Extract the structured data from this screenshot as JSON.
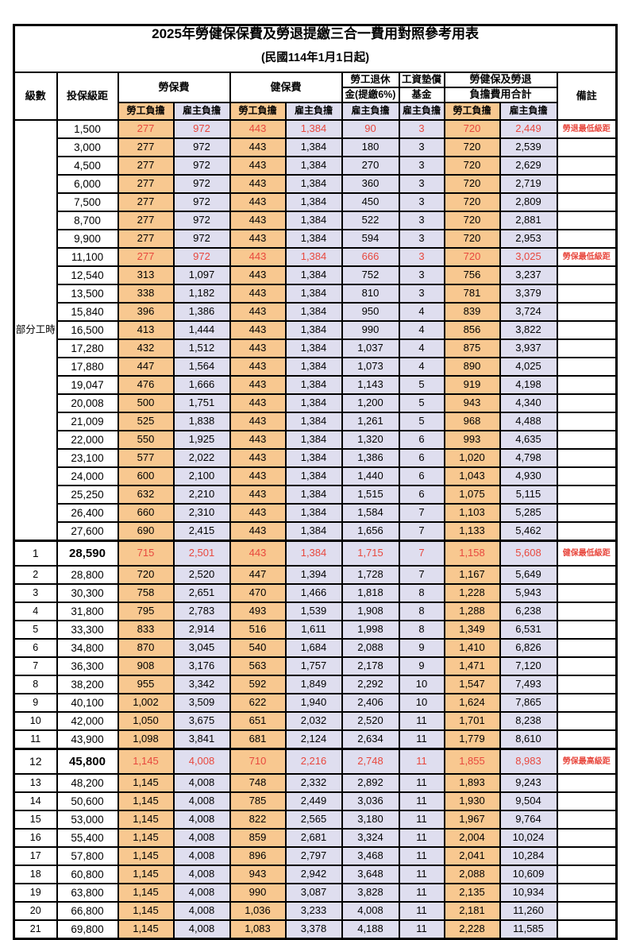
{
  "title": "2025年勞健保保費及勞退提繳三合一費用對照參考用表",
  "subtitle": "(民國114年1月1日起)",
  "colors": {
    "worker_bg": "#F8C890",
    "employer_bg": "#DFDEEF",
    "highlight_red": "#E8483E",
    "grid": "#000000"
  },
  "header": {
    "level": "級數",
    "salary": "投保級距",
    "labor_ins": "勞保費",
    "health_ins": "健保費",
    "pension_l1": "勞工退休",
    "pension_l2": "金(提繳6%)",
    "wage_fund_l1": "工資墊償",
    "wage_fund_l2": "基金",
    "total_l1": "勞健保及勞退",
    "total_l2": "負擔費用合計",
    "remark": "備註",
    "worker": "勞工負擔",
    "employer": "雇主負擔"
  },
  "part_time": {
    "label": "部分工時",
    "rowspan": 23
  },
  "red_rows": [
    0,
    7,
    23,
    34
  ],
  "emph_rows": [
    23,
    34
  ],
  "rows": [
    [
      "",
      "1,500",
      "277",
      "972",
      "443",
      "1,384",
      "90",
      "3",
      "720",
      "2,449",
      "勞退最低級距"
    ],
    [
      "",
      "3,000",
      "277",
      "972",
      "443",
      "1,384",
      "180",
      "3",
      "720",
      "2,539",
      ""
    ],
    [
      "",
      "4,500",
      "277",
      "972",
      "443",
      "1,384",
      "270",
      "3",
      "720",
      "2,629",
      ""
    ],
    [
      "",
      "6,000",
      "277",
      "972",
      "443",
      "1,384",
      "360",
      "3",
      "720",
      "2,719",
      ""
    ],
    [
      "",
      "7,500",
      "277",
      "972",
      "443",
      "1,384",
      "450",
      "3",
      "720",
      "2,809",
      ""
    ],
    [
      "",
      "8,700",
      "277",
      "972",
      "443",
      "1,384",
      "522",
      "3",
      "720",
      "2,881",
      ""
    ],
    [
      "",
      "9,900",
      "277",
      "972",
      "443",
      "1,384",
      "594",
      "3",
      "720",
      "2,953",
      ""
    ],
    [
      "",
      "11,100",
      "277",
      "972",
      "443",
      "1,384",
      "666",
      "3",
      "720",
      "3,025",
      "勞保最低級距"
    ],
    [
      "",
      "12,540",
      "313",
      "1,097",
      "443",
      "1,384",
      "752",
      "3",
      "756",
      "3,237",
      ""
    ],
    [
      "",
      "13,500",
      "338",
      "1,182",
      "443",
      "1,384",
      "810",
      "3",
      "781",
      "3,379",
      ""
    ],
    [
      "",
      "15,840",
      "396",
      "1,386",
      "443",
      "1,384",
      "950",
      "4",
      "839",
      "3,724",
      ""
    ],
    [
      "",
      "16,500",
      "413",
      "1,444",
      "443",
      "1,384",
      "990",
      "4",
      "856",
      "3,822",
      ""
    ],
    [
      "",
      "17,280",
      "432",
      "1,512",
      "443",
      "1,384",
      "1,037",
      "4",
      "875",
      "3,937",
      ""
    ],
    [
      "",
      "17,880",
      "447",
      "1,564",
      "443",
      "1,384",
      "1,073",
      "4",
      "890",
      "4,025",
      ""
    ],
    [
      "",
      "19,047",
      "476",
      "1,666",
      "443",
      "1,384",
      "1,143",
      "5",
      "919",
      "4,198",
      ""
    ],
    [
      "",
      "20,008",
      "500",
      "1,751",
      "443",
      "1,384",
      "1,200",
      "5",
      "943",
      "4,340",
      ""
    ],
    [
      "",
      "21,009",
      "525",
      "1,838",
      "443",
      "1,384",
      "1,261",
      "5",
      "968",
      "4,488",
      ""
    ],
    [
      "",
      "22,000",
      "550",
      "1,925",
      "443",
      "1,384",
      "1,320",
      "6",
      "993",
      "4,635",
      ""
    ],
    [
      "",
      "23,100",
      "577",
      "2,022",
      "443",
      "1,384",
      "1,386",
      "6",
      "1,020",
      "4,798",
      ""
    ],
    [
      "",
      "24,000",
      "600",
      "2,100",
      "443",
      "1,384",
      "1,440",
      "6",
      "1,043",
      "4,930",
      ""
    ],
    [
      "",
      "25,250",
      "632",
      "2,210",
      "443",
      "1,384",
      "1,515",
      "6",
      "1,075",
      "5,115",
      ""
    ],
    [
      "",
      "26,400",
      "660",
      "2,310",
      "443",
      "1,384",
      "1,584",
      "7",
      "1,103",
      "5,285",
      ""
    ],
    [
      "",
      "27,600",
      "690",
      "2,415",
      "443",
      "1,384",
      "1,656",
      "7",
      "1,133",
      "5,462",
      ""
    ],
    [
      "1",
      "28,590",
      "715",
      "2,501",
      "443",
      "1,384",
      "1,715",
      "7",
      "1,158",
      "5,608",
      "健保最低級距"
    ],
    [
      "2",
      "28,800",
      "720",
      "2,520",
      "447",
      "1,394",
      "1,728",
      "7",
      "1,167",
      "5,649",
      ""
    ],
    [
      "3",
      "30,300",
      "758",
      "2,651",
      "470",
      "1,466",
      "1,818",
      "8",
      "1,228",
      "5,943",
      ""
    ],
    [
      "4",
      "31,800",
      "795",
      "2,783",
      "493",
      "1,539",
      "1,908",
      "8",
      "1,288",
      "6,238",
      ""
    ],
    [
      "5",
      "33,300",
      "833",
      "2,914",
      "516",
      "1,611",
      "1,998",
      "8",
      "1,349",
      "6,531",
      ""
    ],
    [
      "6",
      "34,800",
      "870",
      "3,045",
      "540",
      "1,684",
      "2,088",
      "9",
      "1,410",
      "6,826",
      ""
    ],
    [
      "7",
      "36,300",
      "908",
      "3,176",
      "563",
      "1,757",
      "2,178",
      "9",
      "1,471",
      "7,120",
      ""
    ],
    [
      "8",
      "38,200",
      "955",
      "3,342",
      "592",
      "1,849",
      "2,292",
      "10",
      "1,547",
      "7,493",
      ""
    ],
    [
      "9",
      "40,100",
      "1,002",
      "3,509",
      "622",
      "1,940",
      "2,406",
      "10",
      "1,624",
      "7,865",
      ""
    ],
    [
      "10",
      "42,000",
      "1,050",
      "3,675",
      "651",
      "2,032",
      "2,520",
      "11",
      "1,701",
      "8,238",
      ""
    ],
    [
      "11",
      "43,900",
      "1,098",
      "3,841",
      "681",
      "2,124",
      "2,634",
      "11",
      "1,779",
      "8,610",
      ""
    ],
    [
      "12",
      "45,800",
      "1,145",
      "4,008",
      "710",
      "2,216",
      "2,748",
      "11",
      "1,855",
      "8,983",
      "勞保最高級距"
    ],
    [
      "13",
      "48,200",
      "1,145",
      "4,008",
      "748",
      "2,332",
      "2,892",
      "11",
      "1,893",
      "9,243",
      ""
    ],
    [
      "14",
      "50,600",
      "1,145",
      "4,008",
      "785",
      "2,449",
      "3,036",
      "11",
      "1,930",
      "9,504",
      ""
    ],
    [
      "15",
      "53,000",
      "1,145",
      "4,008",
      "822",
      "2,565",
      "3,180",
      "11",
      "1,967",
      "9,764",
      ""
    ],
    [
      "16",
      "55,400",
      "1,145",
      "4,008",
      "859",
      "2,681",
      "3,324",
      "11",
      "2,004",
      "10,024",
      ""
    ],
    [
      "17",
      "57,800",
      "1,145",
      "4,008",
      "896",
      "2,797",
      "3,468",
      "11",
      "2,041",
      "10,284",
      ""
    ],
    [
      "18",
      "60,800",
      "1,145",
      "4,008",
      "943",
      "2,942",
      "3,648",
      "11",
      "2,088",
      "10,609",
      ""
    ],
    [
      "19",
      "63,800",
      "1,145",
      "4,008",
      "990",
      "3,087",
      "3,828",
      "11",
      "2,135",
      "10,934",
      ""
    ],
    [
      "20",
      "66,800",
      "1,145",
      "4,008",
      "1,036",
      "3,233",
      "4,008",
      "11",
      "2,181",
      "11,260",
      ""
    ],
    [
      "21",
      "69,800",
      "1,145",
      "4,008",
      "1,083",
      "3,378",
      "4,188",
      "11",
      "2,228",
      "11,585",
      ""
    ]
  ]
}
